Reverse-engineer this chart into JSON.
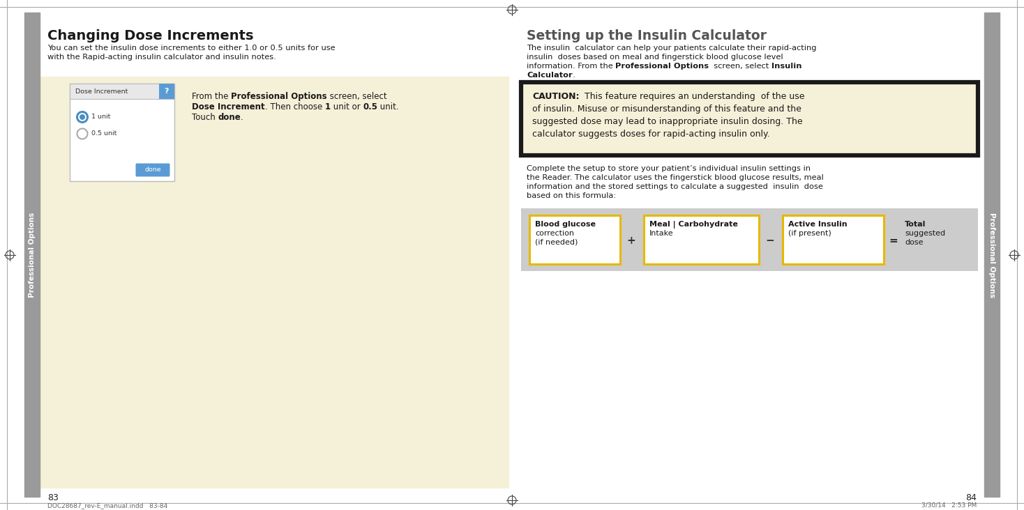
{
  "bg_color": "#ffffff",
  "left_page_bg": "#f5f0d8",
  "sidebar_color": "#9a9a9a",
  "sidebar_text_color": "#ffffff",
  "sidebar_text_left": "Professional Options",
  "sidebar_text_right": "Professional Options",
  "page_num_left": "83",
  "page_num_right": "84",
  "footer_text": "DOC28687_rev-E_manual.indd   83-84",
  "footer_right": "3/30/14   2:53 PM",
  "title_left": "Changing Dose Increments",
  "body_left_1": "You can set the insulin dose increments to either 1.0 or 0.5 units for use",
  "body_left_2": "with the Rapid-acting insulin calculator and insulin notes.",
  "screen_title": "Dose Increment",
  "screen_option1": "1 unit",
  "screen_option2": "0.5 unit",
  "screen_btn": "done",
  "title_right": "Setting up the Insulin Calculator",
  "body_right_1a": "The insulin  calculator can help your patients calculate their rapid-acting",
  "body_right_1b": "insulin  doses based on meal and fingerstick blood glucose level",
  "body_right_1c": "information. From the ",
  "body_right_1c_bold": "Professional Options",
  "body_right_1c_rest": "  screen, select ",
  "body_right_1d_bold": "Insulin",
  "body_right_1e_bold": "Calculator",
  "body_right_1e_rest": ".",
  "caution_label": "CAUTION:",
  "caution_line1": "  This feature requires an understanding  of the use",
  "caution_line2": "of insulin. Misuse or misunderstanding of this feature and the",
  "caution_line3": "suggested dose may lead to inappropriate insulin dosing. The",
  "caution_line4": "calculator suggests doses for rapid-acting insulin only.",
  "body_right_2a": "Complete the setup to store your patient’s individual insulin settings in",
  "body_right_2b": "the Reader. The calculator uses the fingerstick blood glucose results, meal",
  "body_right_2c": "information and the stored settings to calculate a suggested  insulin  dose",
  "body_right_2d": "based on this formula:",
  "formula_box1_line1": "Blood glucose",
  "formula_box1_line2": "correction",
  "formula_box1_line3": "(if needed)",
  "formula_box2_line1": "Meal | Carbohydrate",
  "formula_box2_line2": "Intake",
  "formula_box3_line1": "Active Insulin",
  "formula_box3_line2": "(if present)",
  "formula_result_line1": "Total",
  "formula_result_line2": "suggested",
  "formula_result_line3": "dose",
  "formula_op1": "+",
  "formula_op2": "−",
  "formula_eq": "=",
  "yellow_border": "#e8b800",
  "black_border": "#1a1a1a",
  "blue_btn": "#5b9bd5",
  "blue_radio": "#4a8ec2",
  "formula_bg": "#cccccc",
  "caution_bg": "#f5f0d8"
}
